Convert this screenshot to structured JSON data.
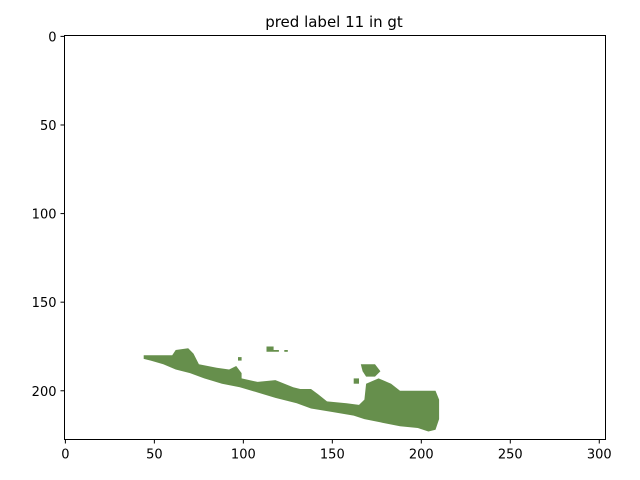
{
  "chart_data": {
    "type": "heatmap",
    "title": "pred label 11 in gt",
    "xlabel": "",
    "ylabel": "",
    "xlim": [
      -0.5,
      303.5
    ],
    "ylim": [
      227.5,
      -0.5
    ],
    "x_ticks": [
      0,
      50,
      100,
      150,
      200,
      250,
      300
    ],
    "y_ticks": [
      0,
      50,
      100,
      150,
      200
    ],
    "mask_color": "#668f4c",
    "background_color": "#ffffff",
    "grid": false,
    "regions": [
      {
        "name": "main-strip",
        "polygon": [
          [
            44,
            180
          ],
          [
            60,
            180
          ],
          [
            62,
            177
          ],
          [
            69,
            176
          ],
          [
            72,
            179
          ],
          [
            75,
            185
          ],
          [
            85,
            187
          ],
          [
            92,
            188
          ],
          [
            96,
            186
          ],
          [
            99,
            190
          ],
          [
            99,
            193
          ],
          [
            108,
            195
          ],
          [
            118,
            194
          ],
          [
            128,
            198
          ],
          [
            132,
            199
          ],
          [
            138,
            199
          ],
          [
            142,
            202
          ],
          [
            147,
            206
          ],
          [
            158,
            207
          ],
          [
            165,
            208
          ],
          [
            168,
            205
          ],
          [
            169,
            196
          ],
          [
            176,
            193
          ],
          [
            183,
            196
          ],
          [
            188,
            200
          ],
          [
            198,
            200
          ],
          [
            208,
            200
          ],
          [
            210,
            205
          ],
          [
            210,
            216
          ],
          [
            208,
            222
          ],
          [
            204,
            223
          ],
          [
            198,
            221
          ],
          [
            188,
            220
          ],
          [
            178,
            218
          ],
          [
            168,
            216
          ],
          [
            162,
            214
          ],
          [
            150,
            212
          ],
          [
            138,
            210
          ],
          [
            130,
            207
          ],
          [
            118,
            204
          ],
          [
            108,
            201
          ],
          [
            98,
            198
          ],
          [
            88,
            196
          ],
          [
            78,
            193
          ],
          [
            70,
            190
          ],
          [
            62,
            188
          ],
          [
            55,
            185
          ],
          [
            48,
            183
          ],
          [
            44,
            182
          ]
        ]
      },
      {
        "name": "upper-lobe",
        "polygon": [
          [
            166,
            185
          ],
          [
            174,
            185
          ],
          [
            177,
            189
          ],
          [
            174,
            192
          ],
          [
            169,
            192
          ],
          [
            167,
            189
          ]
        ]
      },
      {
        "name": "small-blob-left-of-lobe",
        "polygon": [
          [
            162,
            193
          ],
          [
            165,
            193
          ],
          [
            165,
            196
          ],
          [
            162,
            196
          ]
        ]
      },
      {
        "name": "top-speck",
        "polygon": [
          [
            113,
            175
          ],
          [
            117,
            175
          ],
          [
            117,
            177
          ],
          [
            120,
            177
          ],
          [
            120,
            178
          ],
          [
            113,
            178
          ]
        ]
      },
      {
        "name": "isolated-pixel-1",
        "polygon": [
          [
            97,
            181
          ],
          [
            99,
            181
          ],
          [
            99,
            183
          ],
          [
            97,
            183
          ]
        ]
      },
      {
        "name": "isolated-pixel-2",
        "polygon": [
          [
            123,
            177
          ],
          [
            125,
            177
          ],
          [
            125,
            178
          ],
          [
            123,
            178
          ]
        ]
      }
    ]
  }
}
